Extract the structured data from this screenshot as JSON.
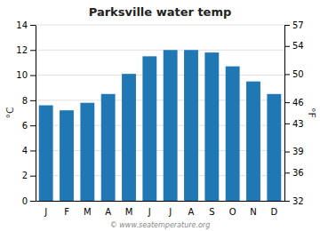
{
  "chart_data": {
    "type": "bar",
    "title": "Parksville water temp",
    "categories": [
      "J",
      "F",
      "M",
      "A",
      "M",
      "J",
      "J",
      "A",
      "S",
      "O",
      "N",
      "D"
    ],
    "values": [
      7.6,
      7.2,
      7.8,
      8.5,
      10.1,
      11.5,
      12.0,
      12.0,
      11.8,
      10.7,
      9.5,
      8.5
    ],
    "ylabel": "°C",
    "y2label": "°F",
    "ylim": [
      0,
      14
    ],
    "yticks": [
      0,
      2,
      4,
      6,
      8,
      10,
      12,
      14
    ],
    "y2lim": [
      32,
      57
    ],
    "y2ticks": [
      32,
      36,
      39,
      43,
      46,
      50,
      54,
      57
    ],
    "grid": true,
    "annotations": [
      "© www.seatemperature.org"
    ]
  }
}
